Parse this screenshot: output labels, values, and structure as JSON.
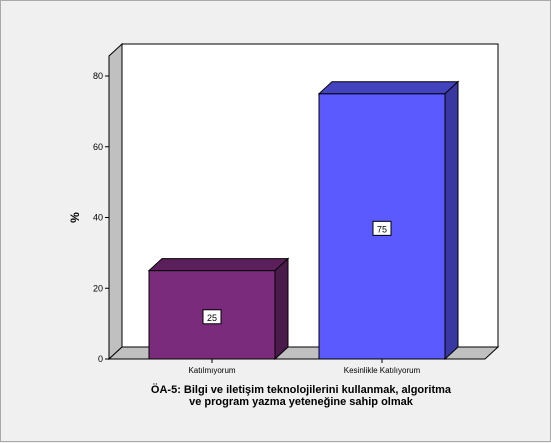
{
  "chart_data": {
    "type": "bar",
    "categories": [
      "Katılmıyorum",
      "Kesinlikle Katılıyorum"
    ],
    "values": [
      25,
      75
    ],
    "data_labels": [
      "25",
      "75"
    ],
    "ylabel": "%",
    "xlabel": "",
    "title_lines": [
      "ÖA-5: Bilgi ve iletişim teknolojilerini kullanmak, algoritma",
      "ve program yazma yeteneğine sahip olmak"
    ],
    "yticks": [
      0,
      20,
      40,
      60,
      80
    ],
    "ylim": [
      0,
      80
    ],
    "grid": false,
    "legend": "none",
    "style": "3d"
  },
  "colors": {
    "background": "#f0f0f0",
    "plot_back": "#ffffff",
    "wall_side": "#c0c0c0",
    "floor": "#c0c0c0",
    "bar_fronts": [
      "#7b2b7b",
      "#5a5aff"
    ],
    "bar_tops": [
      "#5b205b",
      "#4343c0"
    ],
    "bar_sides": [
      "#4a1a4a",
      "#3838a0"
    ]
  }
}
